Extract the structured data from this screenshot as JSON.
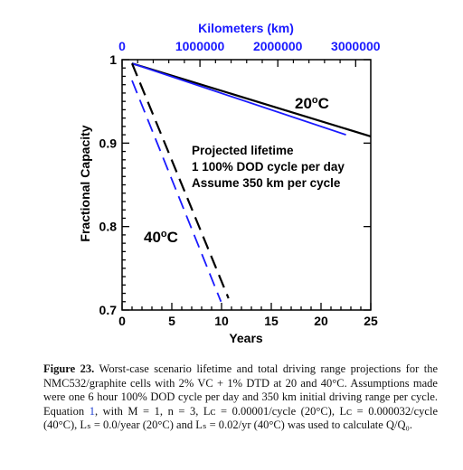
{
  "chart_data": {
    "type": "line",
    "xlabel": "Years",
    "ylabel": "Fractional Capacity",
    "xlim": [
      0,
      25
    ],
    "ylim": [
      0.7,
      1.0
    ],
    "x_ticks": [
      0,
      5,
      10,
      15,
      20,
      25
    ],
    "y_ticks": [
      0.7,
      0.8,
      0.9,
      1
    ],
    "y_tick_labels": [
      "0.7",
      "0.8",
      "0.9",
      "1"
    ],
    "top_axis": {
      "label": "Kilometers (km)",
      "ticks_km": [
        0,
        1000000,
        2000000,
        3000000
      ],
      "tick_labels": [
        "0",
        "1000000",
        "2000000",
        "3000000"
      ],
      "km_per_year": 127750,
      "color": "#1a1aff"
    },
    "series": [
      {
        "group": "20C",
        "axis": "years",
        "style": "solid",
        "color": "#000000",
        "points": [
          [
            1,
            0.9955
          ],
          [
            25,
            0.908
          ]
        ]
      },
      {
        "group": "20C",
        "axis": "km",
        "style": "solid",
        "color": "#1a1aff",
        "points": [
          [
            127750,
            0.9955
          ],
          [
            2875000,
            0.91
          ]
        ]
      },
      {
        "group": "40C",
        "axis": "years",
        "style": "dashed",
        "color": "#000000",
        "points": [
          [
            1,
            0.9955
          ],
          [
            10.7,
            0.714
          ]
        ]
      },
      {
        "group": "40C",
        "axis": "km",
        "style": "dashed",
        "color": "#1a1aff",
        "points": [
          [
            127750,
            0.975
          ],
          [
            1270000,
            0.71
          ]
        ]
      }
    ],
    "annotations": {
      "label_20": {
        "prefix": "20",
        "degree": "o",
        "suffix": "C"
      },
      "label_40": {
        "prefix": "40",
        "degree": "o",
        "suffix": "C"
      },
      "note_lines": [
        "Projected lifetime",
        "1 100% DOD cycle per day",
        "Assume 350 km per cycle"
      ]
    }
  },
  "caption": {
    "label": "Figure 23.",
    "before_link": "Worst-case scenario lifetime and total driving range projections for the NMC532/graphite cells with 2% VC + 1% DTD at 20 and 40°C. Assumptions made were one 6 hour 100% DOD cycle per day and 350 km initial driving range per cycle. Equation ",
    "link": "1",
    "after_link": ", with M = 1, n = 3, Lᴄ = 0.00001/cycle (20°C), Lᴄ = 0.000032/cycle (40°C), Lₛ = 0.0/year (20°C) and Lₛ = 0.02/yr (40°C) was used to calculate Q/Q₀."
  }
}
